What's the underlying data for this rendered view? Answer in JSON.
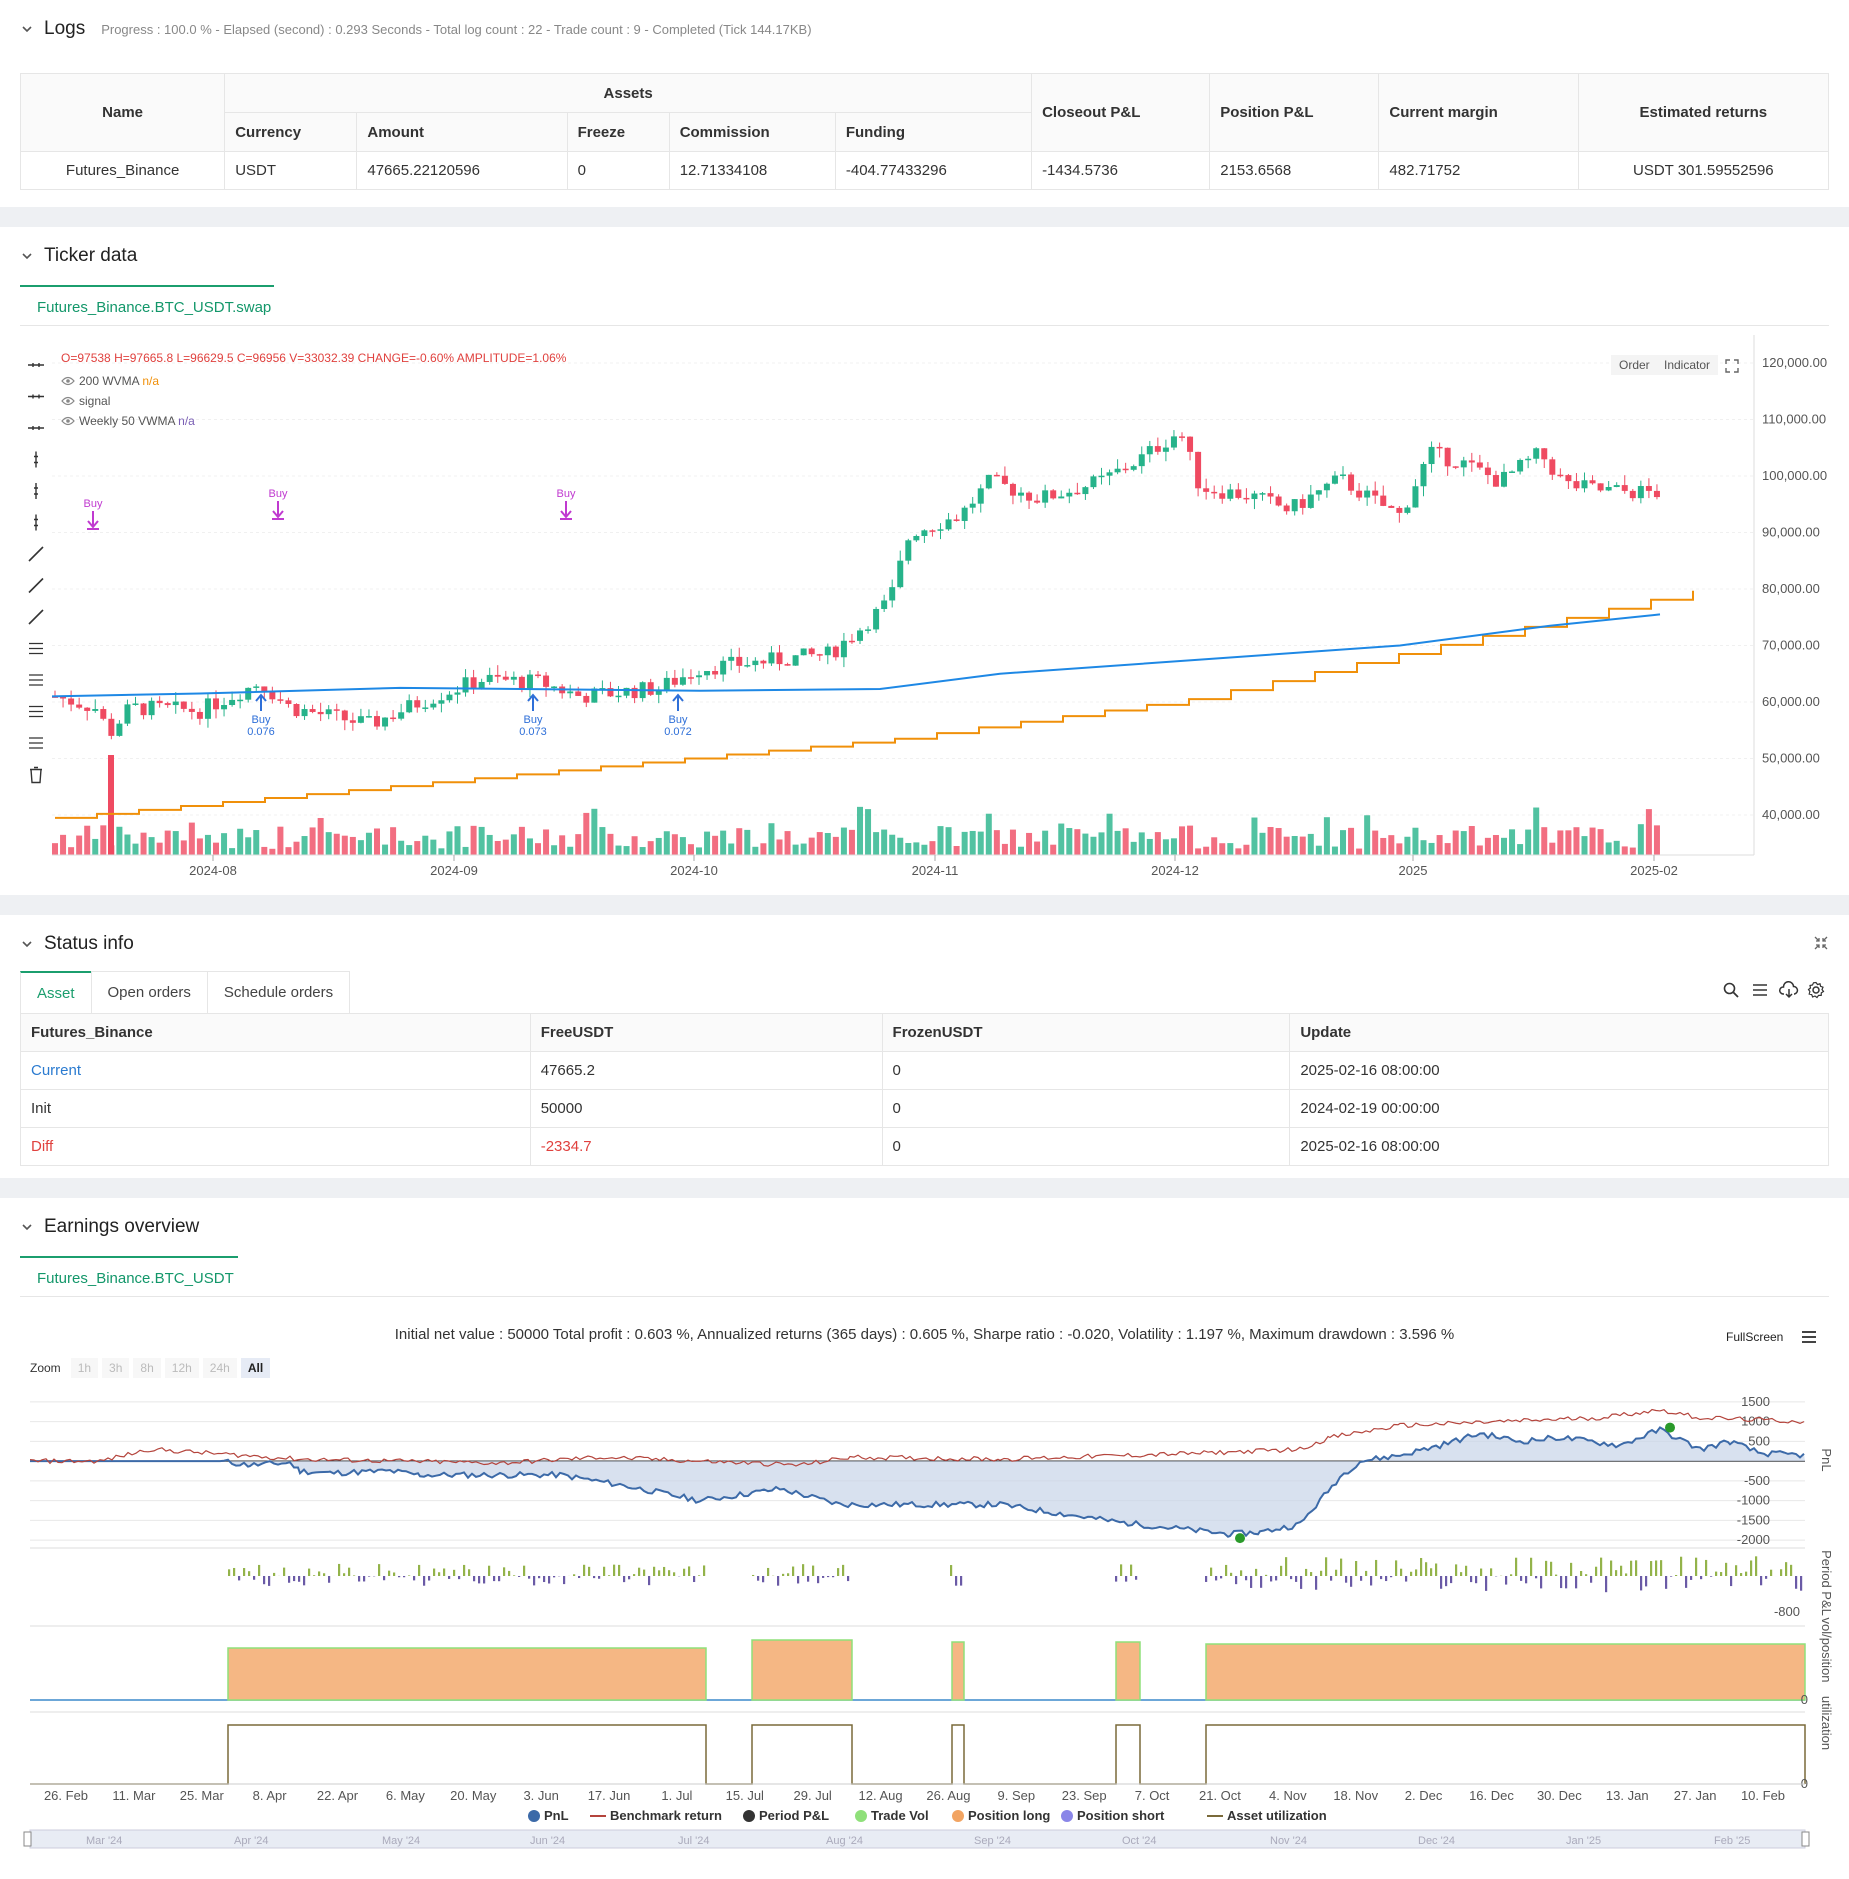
{
  "logs": {
    "title": "Logs",
    "status": "Progress : 100.0 % - Elapsed (second) : 0.293  Seconds - Total log count : 22 - Trade count : 9 - Completed (Tick 144.17KB)",
    "columns": {
      "name": "Name",
      "assets": "Assets",
      "currency": "Currency",
      "amount": "Amount",
      "freeze": "Freeze",
      "commission": "Commission",
      "funding": "Funding",
      "closeout": "Closeout P&L",
      "position": "Position P&L",
      "margin": "Current margin",
      "returns": "Estimated returns"
    },
    "row": {
      "name": "Futures_Binance",
      "currency": "USDT",
      "amount": "47665.22120596",
      "freeze": "0",
      "commission": "12.71334108",
      "funding": "-404.77433296",
      "closeout": "-1434.5736",
      "position": "2153.6568",
      "margin": "482.71752",
      "returns": "USDT 301.59552596"
    }
  },
  "ticker": {
    "title": "Ticker data",
    "tab": "Futures_Binance.BTC_USDT.swap",
    "ohlc": {
      "o": "O=97538",
      "h": "H=97665.8",
      "l": "L=96629.5",
      "c": "C=96956",
      "v": "V=33032.39",
      "change": "CHANGE=-0.60%",
      "amp": "AMPLITUDE=1.06%"
    },
    "legend": [
      {
        "name": "200 WVMA",
        "value": "n/a",
        "color": "#f0900a"
      },
      {
        "name": "signal",
        "value": "",
        "color": "#888888"
      },
      {
        "name": "Weekly 50 VWMA",
        "value": "n/a",
        "color": "#7a5fb5"
      }
    ],
    "buttons": {
      "order": "Order",
      "indicator": "Indicator"
    },
    "y_ticks": [
      "120,000.00",
      "110,000.00",
      "100,000.00",
      "90,000.00",
      "80,000.00",
      "70,000.00",
      "60,000.00",
      "50,000.00",
      "40,000.00"
    ],
    "x_ticks": [
      "2024-08",
      "2024-09",
      "2024-10",
      "2024-11",
      "2024-12",
      "2025",
      "2025-02"
    ],
    "markers": [
      {
        "label": "Buy",
        "type": "sell"
      },
      {
        "label": "Buy",
        "type": "sell"
      },
      {
        "label": "Buy",
        "type": "sell"
      },
      {
        "label": "Buy",
        "value": "0.076",
        "type": "buy"
      },
      {
        "label": "Buy",
        "value": "0.073",
        "type": "buy"
      },
      {
        "label": "Buy",
        "value": "0.072",
        "type": "buy"
      }
    ]
  },
  "status": {
    "title": "Status info",
    "tabs": [
      "Asset",
      "Open orders",
      "Schedule orders"
    ],
    "columns": [
      "Futures_Binance",
      "FreeUSDT",
      "FrozenUSDT",
      "Update"
    ],
    "rows": [
      {
        "label": "Current",
        "free": "47665.2",
        "frozen": "0",
        "update": "2025-02-16 08:00:00"
      },
      {
        "label": "Init",
        "free": "50000",
        "frozen": "0",
        "update": "2024-02-19 00:00:00"
      },
      {
        "label": "Diff",
        "free": "-2334.7",
        "frozen": "0",
        "update": "2025-02-16 08:00:00"
      }
    ]
  },
  "earnings": {
    "title": "Earnings overview",
    "tab": "Futures_Binance.BTC_USDT",
    "summary": "Initial net value : 50000 Total profit : 0.603 %, Annualized returns (365 days) : 0.605 %, Sharpe ratio : -0.020, Volatility : 1.197 %, Maximum drawdown : 3.596 %",
    "fullscreen": "FullScreen",
    "zoom_label": "Zoom",
    "zoom_options": [
      "1h",
      "3h",
      "8h",
      "12h",
      "24h",
      "All"
    ],
    "pnl_ticks": [
      "1500",
      "1000",
      "500",
      "-500",
      "-1000",
      "-1500",
      "-2000"
    ],
    "period_ticks": [
      "-800"
    ],
    "axis_titles": [
      "PnL",
      "Period P&L",
      "vol/position",
      "utilization"
    ],
    "zero_label": "0",
    "x_ticks": [
      "26. Feb",
      "11. Mar",
      "25. Mar",
      "8. Apr",
      "22. Apr",
      "6. May",
      "20. May",
      "3. Jun",
      "17. Jun",
      "1. Jul",
      "15. Jul",
      "29. Jul",
      "12. Aug",
      "26. Aug",
      "9. Sep",
      "23. Sep",
      "7. Oct",
      "21. Oct",
      "4. Nov",
      "18. Nov",
      "2. Dec",
      "16. Dec",
      "30. Dec",
      "13. Jan",
      "27. Jan",
      "10. Feb"
    ],
    "legend": [
      {
        "name": "PnL",
        "color": "#3c6aa8"
      },
      {
        "name": "Benchmark return",
        "color": "#b4443c"
      },
      {
        "name": "Period P&L",
        "color": "#333333"
      },
      {
        "name": "Trade Vol",
        "color": "#8fe07a"
      },
      {
        "name": "Position long",
        "color": "#f2a462"
      },
      {
        "name": "Position short",
        "color": "#8a86e8"
      },
      {
        "name": "Asset utilization",
        "color": "#7a6a3a"
      }
    ],
    "navigator": [
      "Mar '24",
      "Apr '24",
      "May '24",
      "Jun '24",
      "Jul '24",
      "Aug '24",
      "Sep '24",
      "Oct '24",
      "Nov '24",
      "Dec '24",
      "Jan '25",
      "Feb '25"
    ]
  },
  "colors": {
    "accent": "#1b9e6e",
    "up": "#26b38a",
    "down": "#ef4a61",
    "wvma": "#f0900a",
    "vwma": "#1e88e5"
  }
}
